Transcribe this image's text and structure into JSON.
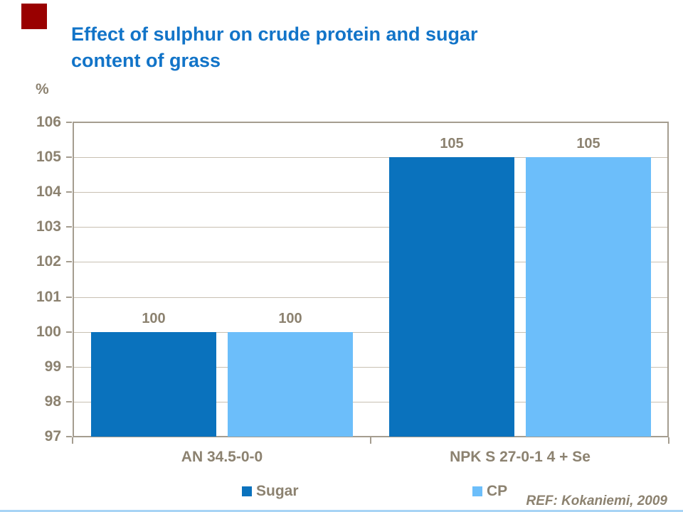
{
  "slide": {
    "title_line1": "Effect of sulphur on crude protein and sugar",
    "title_line2": "content of grass",
    "ref_text": "REF: Kokaniemi, 2009",
    "colors": {
      "title_blue": "#1274c8",
      "accent_red": "#990000",
      "axis_text": "#8c8270",
      "grid_line": "#c8c0b2",
      "axis_border": "#a59d90",
      "bottom_rule_blue": "#a8d4f5"
    }
  },
  "chart_data": {
    "type": "bar",
    "title": "Effect of sulphur on crude protein and sugar content of grass",
    "ylabel": "%",
    "xlabel": "",
    "ylim": [
      97,
      106
    ],
    "yticks": [
      106,
      105,
      104,
      103,
      102,
      101,
      100,
      99,
      98,
      97
    ],
    "grid": true,
    "legend_position": "bottom",
    "categories": [
      "AN 34.5-0-0",
      "NPK S 27-0-1 4 + Se"
    ],
    "series": [
      {
        "name": "Sugar",
        "color": "#0a72bd",
        "values": [
          100,
          105
        ]
      },
      {
        "name": "CP",
        "color": "#6cbefa",
        "values": [
          100,
          105
        ]
      }
    ],
    "bar_value_labels": {
      "Sugar": [
        "100",
        "105"
      ],
      "CP": [
        "100",
        "105"
      ]
    }
  }
}
